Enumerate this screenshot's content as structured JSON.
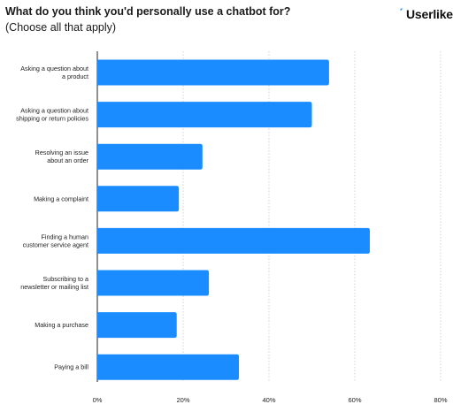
{
  "header": {
    "title": "What do you think you'd personally use a chatbot for?",
    "subtitle": "(Choose all that apply)",
    "logo_text": "Userlike",
    "logo_icon": "userlike-logo-mark"
  },
  "chart_data": {
    "type": "bar",
    "orientation": "horizontal",
    "title": "What do you think you'd personally use a chatbot for?",
    "subtitle": "(Choose all that apply)",
    "categories": [
      [
        "Asking a question about",
        "a product"
      ],
      [
        "Asking a question about",
        "shipping or return policies"
      ],
      [
        "Resolving an issue",
        "about an order"
      ],
      [
        "Making a complaint"
      ],
      [
        "Finding a human",
        "customer service agent"
      ],
      [
        "Subscribing to a",
        "newsletter or mailing list"
      ],
      [
        "Making a purchase"
      ],
      [
        "Paying a bill"
      ]
    ],
    "values": [
      54,
      50,
      24.5,
      19,
      63.5,
      26,
      18.5,
      33
    ],
    "x_ticks": [
      "0%",
      "20%",
      "40%",
      "60%",
      "80%"
    ],
    "xlim": [
      0,
      80
    ],
    "x_unit": "%",
    "grid": "vertical dotted",
    "bar_color": "#1a8cff"
  }
}
